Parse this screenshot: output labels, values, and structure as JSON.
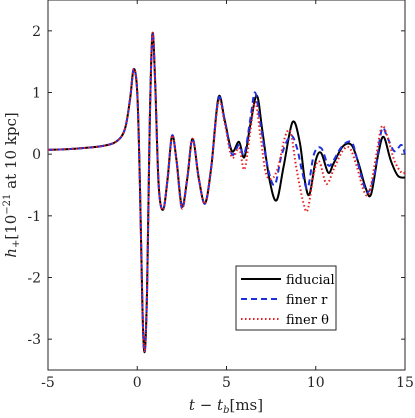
{
  "chart_data": {
    "type": "line",
    "xlabel": "t − t_b[ms]",
    "ylabel": "h_+[10^{-21} at 10 kpc]",
    "xlim": [
      -5,
      15
    ],
    "ylim": [
      -3.5,
      2.5
    ],
    "xticks": [
      -5,
      0,
      5,
      10,
      15
    ],
    "yticks": [
      -3,
      -2,
      -1,
      0,
      1,
      2
    ],
    "xtick_labels": [
      "-5",
      "0",
      "5",
      "10",
      "15"
    ],
    "ytick_labels": [
      "-3",
      "-2",
      "-1",
      "0",
      "1",
      "2"
    ],
    "grid": false,
    "legend_position": "lower-right",
    "series": [
      {
        "name": "fiducial",
        "color": "#000000",
        "dash": "solid",
        "points": [
          [
            -5,
            0.07
          ],
          [
            -4,
            0.08
          ],
          [
            -3,
            0.1
          ],
          [
            -2,
            0.13
          ],
          [
            -1.2,
            0.2
          ],
          [
            -0.7,
            0.4
          ],
          [
            -0.4,
            0.9
          ],
          [
            -0.2,
            1.38
          ],
          [
            0,
            1.0
          ],
          [
            0.15,
            -0.5
          ],
          [
            0.3,
            -2.6
          ],
          [
            0.42,
            -3.2
          ],
          [
            0.55,
            -2.2
          ],
          [
            0.7,
            0.5
          ],
          [
            0.85,
            1.95
          ],
          [
            1.0,
            1.2
          ],
          [
            1.2,
            -0.5
          ],
          [
            1.45,
            -0.9
          ],
          [
            1.7,
            -0.4
          ],
          [
            1.95,
            0.3
          ],
          [
            2.2,
            -0.1
          ],
          [
            2.5,
            -0.85
          ],
          [
            2.8,
            -0.4
          ],
          [
            3.1,
            0.25
          ],
          [
            3.45,
            -0.4
          ],
          [
            3.8,
            -0.8
          ],
          [
            4.15,
            -0.2
          ],
          [
            4.55,
            0.92
          ],
          [
            4.9,
            0.55
          ],
          [
            5.3,
            0.05
          ],
          [
            5.7,
            0.2
          ],
          [
            6.0,
            -0.05
          ],
          [
            6.35,
            0.5
          ],
          [
            6.7,
            0.95
          ],
          [
            7.0,
            0.4
          ],
          [
            7.4,
            -0.4
          ],
          [
            7.8,
            -0.75
          ],
          [
            8.2,
            -0.2
          ],
          [
            8.7,
            0.52
          ],
          [
            9.1,
            0.2
          ],
          [
            9.4,
            -0.45
          ],
          [
            9.65,
            -0.65
          ],
          [
            10.0,
            -0.1
          ],
          [
            10.3,
            0.02
          ],
          [
            10.7,
            -0.3
          ],
          [
            11.0,
            -0.15
          ],
          [
            11.5,
            0.12
          ],
          [
            12.0,
            0.15
          ],
          [
            12.4,
            -0.15
          ],
          [
            12.8,
            -0.55
          ],
          [
            13.1,
            -0.65
          ],
          [
            13.5,
            0.0
          ],
          [
            13.8,
            0.28
          ],
          [
            14.2,
            -0.1
          ],
          [
            14.6,
            -0.35
          ],
          [
            15,
            -0.38
          ]
        ]
      },
      {
        "name": "finer r",
        "color": "#1f2fe0",
        "dash": "dashed",
        "points": [
          [
            -5,
            0.07
          ],
          [
            -4,
            0.08
          ],
          [
            -3,
            0.1
          ],
          [
            -2,
            0.13
          ],
          [
            -1.2,
            0.2
          ],
          [
            -0.7,
            0.4
          ],
          [
            -0.4,
            0.9
          ],
          [
            -0.2,
            1.38
          ],
          [
            0,
            1.0
          ],
          [
            0.15,
            -0.5
          ],
          [
            0.3,
            -2.6
          ],
          [
            0.42,
            -3.2
          ],
          [
            0.55,
            -2.2
          ],
          [
            0.7,
            0.5
          ],
          [
            0.85,
            1.95
          ],
          [
            1.0,
            1.2
          ],
          [
            1.2,
            -0.5
          ],
          [
            1.45,
            -0.9
          ],
          [
            1.7,
            -0.4
          ],
          [
            1.95,
            0.3
          ],
          [
            2.2,
            -0.1
          ],
          [
            2.5,
            -0.88
          ],
          [
            2.8,
            -0.4
          ],
          [
            3.1,
            0.25
          ],
          [
            3.45,
            -0.4
          ],
          [
            3.8,
            -0.8
          ],
          [
            4.15,
            -0.2
          ],
          [
            4.55,
            0.9
          ],
          [
            4.9,
            0.55
          ],
          [
            5.3,
            0.0
          ],
          [
            5.7,
            0.15
          ],
          [
            6.0,
            0.0
          ],
          [
            6.35,
            0.6
          ],
          [
            6.6,
            1.0
          ],
          [
            6.9,
            0.5
          ],
          [
            7.3,
            -0.2
          ],
          [
            7.7,
            -0.5
          ],
          [
            8.1,
            0.0
          ],
          [
            8.6,
            0.3
          ],
          [
            8.95,
            0.1
          ],
          [
            9.25,
            -0.3
          ],
          [
            9.55,
            -0.55
          ],
          [
            9.9,
            0.0
          ],
          [
            10.3,
            0.1
          ],
          [
            10.7,
            -0.18
          ],
          [
            11.0,
            -0.1
          ],
          [
            11.4,
            0.1
          ],
          [
            11.8,
            0.2
          ],
          [
            12.1,
            0.15
          ],
          [
            12.5,
            -0.3
          ],
          [
            12.9,
            -0.62
          ],
          [
            13.3,
            -0.3
          ],
          [
            13.7,
            0.4
          ],
          [
            14.0,
            0.28
          ],
          [
            14.4,
            0.05
          ],
          [
            14.8,
            0.15
          ],
          [
            15,
            0.0
          ]
        ]
      },
      {
        "name": "finer θ",
        "color": "#e81e1e",
        "dash": "dotted",
        "points": [
          [
            -5,
            0.07
          ],
          [
            -4,
            0.08
          ],
          [
            -3,
            0.1
          ],
          [
            -2,
            0.13
          ],
          [
            -1.2,
            0.2
          ],
          [
            -0.7,
            0.4
          ],
          [
            -0.4,
            0.9
          ],
          [
            -0.2,
            1.38
          ],
          [
            0,
            1.0
          ],
          [
            0.15,
            -0.5
          ],
          [
            0.3,
            -2.6
          ],
          [
            0.42,
            -3.2
          ],
          [
            0.55,
            -2.2
          ],
          [
            0.7,
            0.5
          ],
          [
            0.85,
            1.95
          ],
          [
            1.0,
            1.2
          ],
          [
            1.2,
            -0.5
          ],
          [
            1.45,
            -0.9
          ],
          [
            1.7,
            -0.4
          ],
          [
            1.95,
            0.3
          ],
          [
            2.2,
            -0.1
          ],
          [
            2.5,
            -0.88
          ],
          [
            2.8,
            -0.4
          ],
          [
            3.1,
            0.25
          ],
          [
            3.45,
            -0.4
          ],
          [
            3.8,
            -0.8
          ],
          [
            4.15,
            -0.2
          ],
          [
            4.55,
            0.85
          ],
          [
            4.9,
            0.5
          ],
          [
            5.3,
            -0.05
          ],
          [
            5.7,
            0.1
          ],
          [
            6.0,
            -0.25
          ],
          [
            6.3,
            0.3
          ],
          [
            6.6,
            0.85
          ],
          [
            6.9,
            0.3
          ],
          [
            7.2,
            -0.3
          ],
          [
            7.55,
            -0.4
          ],
          [
            7.9,
            -0.2
          ],
          [
            8.3,
            0.3
          ],
          [
            8.6,
            0.35
          ],
          [
            8.9,
            -0.2
          ],
          [
            9.3,
            -0.78
          ],
          [
            9.55,
            -0.9
          ],
          [
            9.9,
            -0.3
          ],
          [
            10.2,
            -0.12
          ],
          [
            10.6,
            -0.48
          ],
          [
            11.0,
            -0.25
          ],
          [
            11.5,
            0.05
          ],
          [
            11.9,
            0.1
          ],
          [
            12.3,
            -0.2
          ],
          [
            12.7,
            -0.6
          ],
          [
            13.0,
            -0.62
          ],
          [
            13.4,
            0.0
          ],
          [
            13.7,
            0.45
          ],
          [
            14.0,
            0.3
          ],
          [
            14.4,
            -0.1
          ],
          [
            14.8,
            -0.3
          ],
          [
            15,
            -0.3
          ]
        ]
      }
    ]
  }
}
